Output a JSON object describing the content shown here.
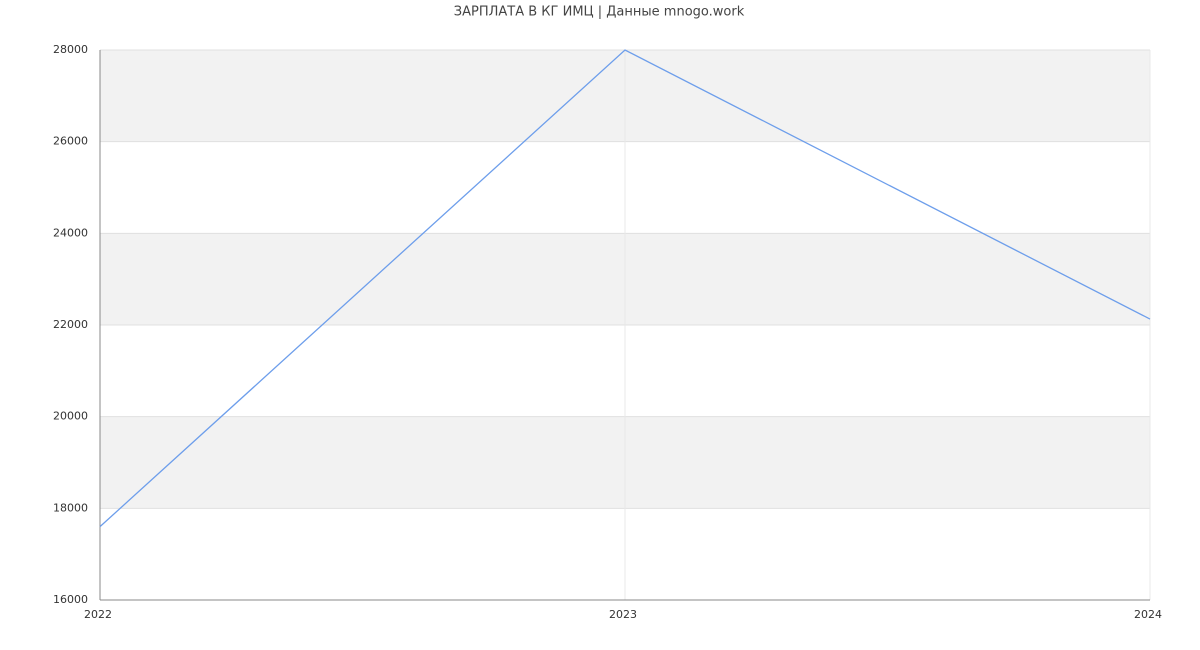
{
  "chart_data": {
    "type": "line",
    "title": "ЗАРПЛАТА В КГ ИМЦ | Данные mnogo.work",
    "x": [
      2022,
      2023,
      2024
    ],
    "values": [
      17600,
      28000,
      22130
    ],
    "color": "#6d9eeb",
    "xlim": [
      2022,
      2024
    ],
    "xticks": [
      2022,
      2023,
      2024
    ],
    "ylim": [
      16000,
      28000
    ],
    "yticks": [
      16000,
      18000,
      20000,
      22000,
      24000,
      26000,
      28000
    ],
    "grid": true,
    "band_color": "#f2f2f2"
  }
}
